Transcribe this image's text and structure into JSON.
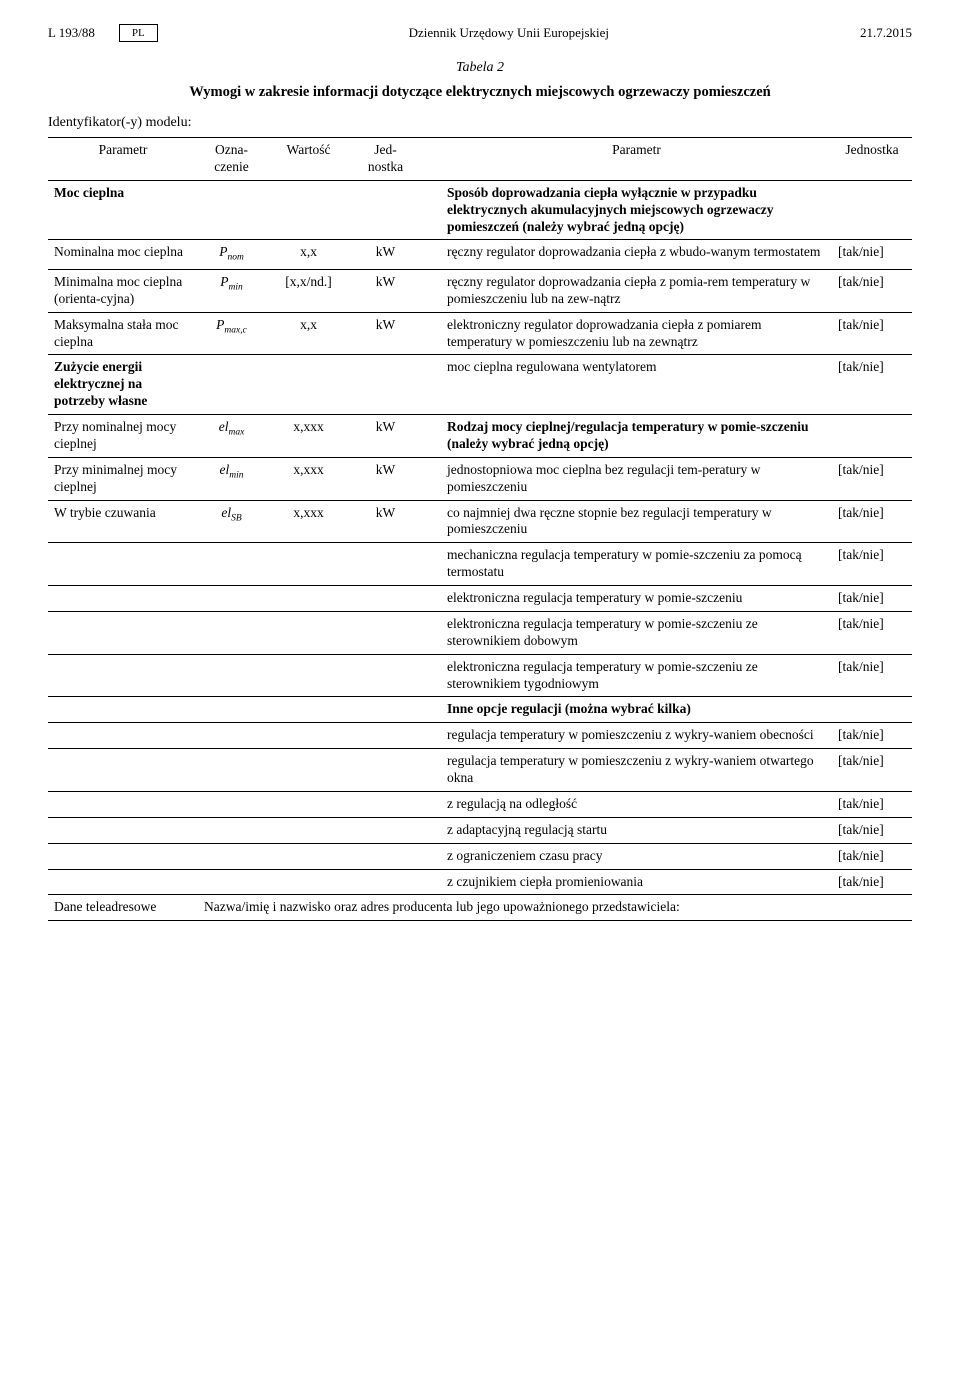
{
  "header": {
    "doc_ref": "L 193/88",
    "lang_box": "PL",
    "journal": "Dziennik Urzędowy Unii Europejskiej",
    "date": "21.7.2015"
  },
  "title": {
    "table_label": "Tabela 2",
    "subtitle": "Wymogi w zakresie informacji dotyczące elektrycznych miejscowych ogrzewaczy pomieszczeń"
  },
  "identifier_label": "Identyfikator(-y) modelu:",
  "columns": {
    "param_left": "Parametr",
    "ozn": "Ozna-\nczenie",
    "wartosc": "Wartość",
    "jednostka_l": "Jed-\nnostka",
    "param_right": "Parametr",
    "jednostka_r": "Jednostka"
  },
  "left_sections": {
    "moc_cieplna": "Moc cieplna",
    "nominalna": "Nominalna moc cieplna",
    "minimalna": "Minimalna moc cieplna (orienta-cyjna)",
    "maksymalna": "Maksymalna stała moc cieplna",
    "zuzycie": "Zużycie energii elektrycznej na potrzeby własne",
    "przy_nominalnej": "Przy nominalnej mocy cieplnej",
    "przy_minimalnej": "Przy minimalnej mocy cieplnej",
    "w_trybie": "W trybie czuwania",
    "dane_teleadresowe": "Dane teleadresowe"
  },
  "symbols": {
    "pnom_pre": "P",
    "pnom_sub": "nom",
    "pmin_pre": "P",
    "pmin_sub": "min",
    "pmaxc_pre": "P",
    "pmaxc_sub": "max,c",
    "elmax_pre": "el",
    "elmax_sub": "max",
    "elmin_pre": "el",
    "elmin_sub": "min",
    "elsb_pre": "el",
    "elsb_sub": "SB"
  },
  "values": {
    "xx": "x,x",
    "xxnd": "[x,x/nd.]",
    "xxxx": "x,xxx"
  },
  "units": {
    "kw": "kW"
  },
  "right_rows": {
    "sposob_heading": "Sposób doprowadzania ciepła wyłącznie w przypadku elektrycznych akumulacyjnych miejscowych ogrzewaczy pomieszczeń (należy wybrać jedną opcję)",
    "reczny_wbud": "ręczny regulator doprowadzania ciepła z wbudo-wanym termostatem",
    "reczny_pomiar": "ręczny regulator doprowadzania ciepła z pomia-rem temperatury w pomieszczeniu lub na zew-nątrz",
    "elektroniczny_reg": "elektroniczny regulator doprowadzania ciepła z pomiarem temperatury w pomieszczeniu lub na zewnątrz",
    "moc_wentyl": "moc cieplna regulowana wentylatorem",
    "rodzaj_mocy": "Rodzaj mocy cieplnej/regulacja temperatury w pomie-szczeniu (należy wybrać jedną opcję)",
    "jednostopniowa": "jednostopniowa moc cieplna bez regulacji tem-peratury w pomieszczeniu",
    "co_najmniej": "co najmniej dwa ręczne stopnie bez regulacji temperatury w pomieszczeniu",
    "mechaniczna": "mechaniczna regulacja temperatury w pomie-szczeniu za pomocą termostatu",
    "elektroniczna": "elektroniczna regulacja temperatury w pomie-szczeniu",
    "elektroniczna_dob": "elektroniczna regulacja temperatury w pomie-szczeniu ze sterownikiem dobowym",
    "elektroniczna_tyg": "elektroniczna regulacja temperatury w pomie-szczeniu ze sterownikiem tygodniowym",
    "inne_opcje": "Inne opcje regulacji (można wybrać kilka)",
    "wykryw_obec": "regulacja temperatury w pomieszczeniu z wykry-waniem obecności",
    "wykryw_okna": "regulacja temperatury w pomieszczeniu z wykry-waniem otwartego okna",
    "z_regulacja_odl": "z regulacją na odległość",
    "z_adaptacyjna": "z adaptacyjną regulacją startu",
    "z_ograniczeniem": "z ograniczeniem czasu pracy",
    "z_czujnikiem": "z czujnikiem ciepła promieniowania"
  },
  "yn": "[tak/nie]",
  "footer_text": "Nazwa/imię i nazwisko oraz adres producenta lub jego upoważnionego przedstawiciela:"
}
